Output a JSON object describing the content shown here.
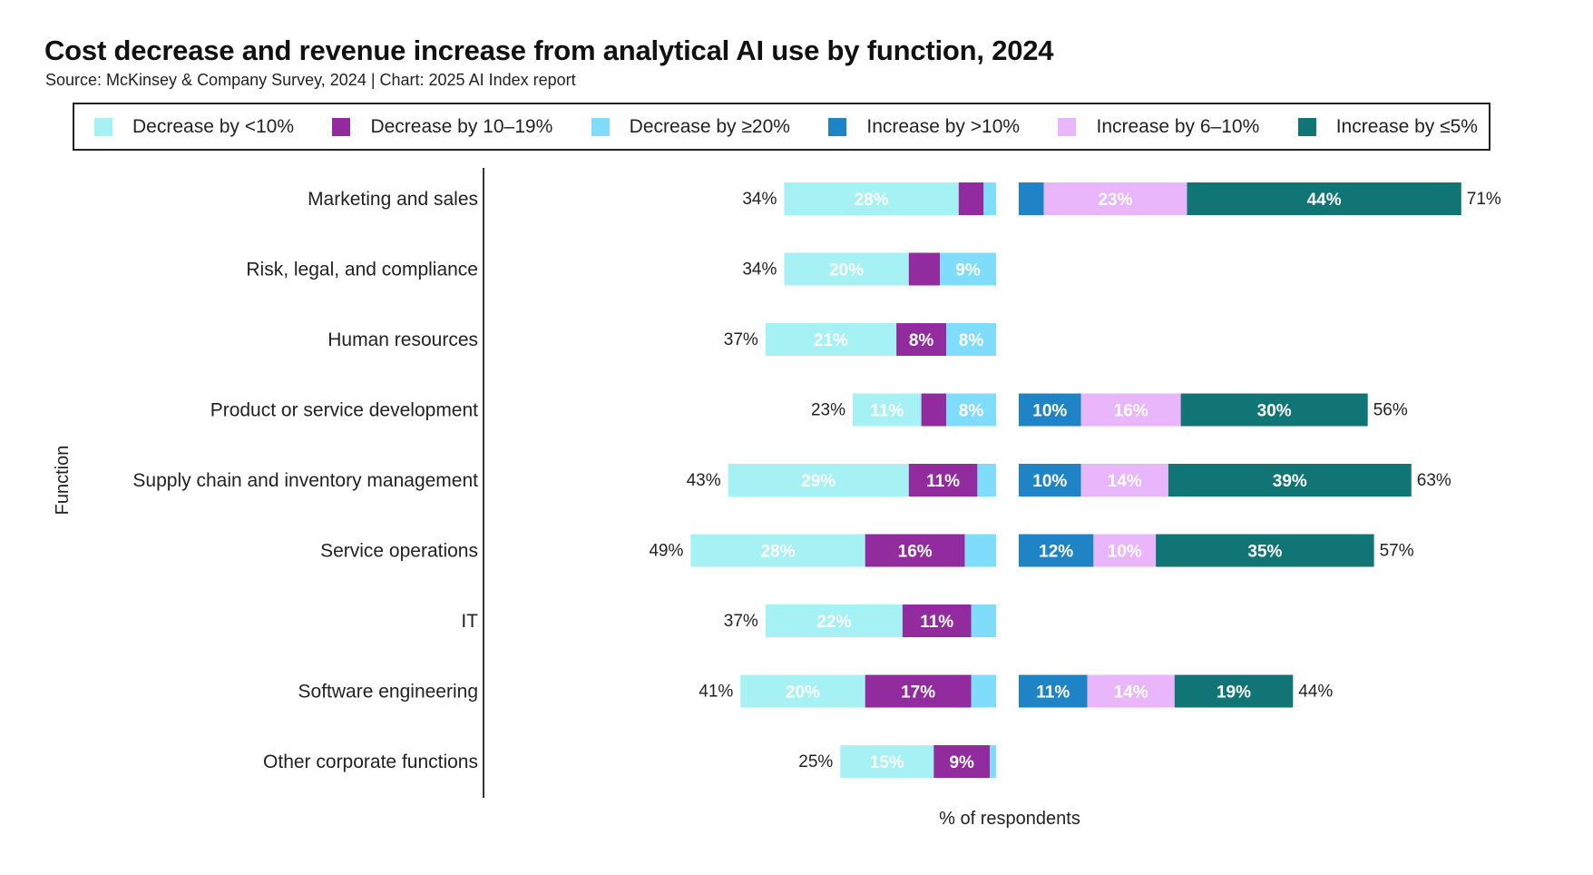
{
  "header": {
    "title": "Cost decrease and revenue increase from analytical AI use by function, 2024",
    "subtitle": "Source: McKinsey & Company Survey, 2024 | Chart: 2025 AI Index report"
  },
  "legend": [
    {
      "label": "Decrease by <10%",
      "color": "#a6f1f4"
    },
    {
      "label": "Decrease by 10–19%",
      "color": "#922b9e"
    },
    {
      "label": "Decrease by ≥20%",
      "color": "#7fdcfb"
    },
    {
      "label": "Increase by >10%",
      "color": "#1f84c6"
    },
    {
      "label": "Increase by 6–10%",
      "color": "#e9b5fb"
    },
    {
      "label": "Increase by ≤5%",
      "color": "#117575"
    }
  ],
  "chart_data": {
    "type": "bar",
    "orientation": "horizontal",
    "stacked": true,
    "layout": "diverging",
    "title": "Cost decrease and revenue increase from analytical AI use by function, 2024",
    "subtitle": "Source: McKinsey & Company Survey, 2024 | Chart: 2025 AI Index report",
    "xlabel": "% of respondents",
    "ylabel": "Function",
    "legend_position": "top",
    "categories": [
      "Marketing and sales",
      "Risk, legal, and compliance",
      "Human resources",
      "Product or service development",
      "Supply chain and inventory management",
      "Service operations",
      "IT",
      "Software engineering",
      "Other corporate functions"
    ],
    "cost_decrease": {
      "totals": [
        34,
        34,
        37,
        23,
        43,
        49,
        37,
        41,
        25
      ],
      "series": [
        {
          "name": "Decrease by <10%",
          "color": "#a6f1f4",
          "values": [
            28,
            20,
            21,
            11,
            29,
            28,
            22,
            20,
            15
          ],
          "labels": [
            "28%",
            "20%",
            "21%",
            "11%",
            "29%",
            "28%",
            "22%",
            "20%",
            "15%"
          ]
        },
        {
          "name": "Decrease by 10–19%",
          "color": "#922b9e",
          "values": [
            4,
            5,
            8,
            4,
            11,
            16,
            11,
            17,
            9
          ],
          "labels": [
            "",
            "",
            "8%",
            "",
            "11%",
            "16%",
            "11%",
            "17%",
            "9%"
          ]
        },
        {
          "name": "Decrease by ≥20%",
          "color": "#7fdcfb",
          "values": [
            2,
            9,
            8,
            8,
            3,
            5,
            4,
            4,
            1
          ],
          "labels": [
            "",
            "9%",
            "8%",
            "8%",
            "",
            "",
            "",
            "",
            ""
          ]
        }
      ]
    },
    "revenue_increase": {
      "totals": [
        71,
        null,
        null,
        56,
        63,
        57,
        null,
        44,
        null
      ],
      "series": [
        {
          "name": "Increase by >10%",
          "color": "#1f84c6",
          "values": [
            4,
            null,
            null,
            10,
            10,
            12,
            null,
            11,
            null
          ],
          "labels": [
            "",
            "",
            "",
            "10%",
            "10%",
            "12%",
            "",
            "11%",
            ""
          ]
        },
        {
          "name": "Increase by 6–10%",
          "color": "#e9b5fb",
          "values": [
            23,
            null,
            null,
            16,
            14,
            10,
            null,
            14,
            null
          ],
          "labels": [
            "23%",
            "",
            "",
            "16%",
            "14%",
            "10%",
            "",
            "14%",
            ""
          ]
        },
        {
          "name": "Increase by ≤5%",
          "color": "#117575",
          "values": [
            44,
            null,
            null,
            30,
            39,
            35,
            null,
            19,
            null
          ],
          "labels": [
            "44%",
            "",
            "",
            "30%",
            "39%",
            "35%",
            "",
            "19%",
            ""
          ]
        }
      ]
    }
  }
}
